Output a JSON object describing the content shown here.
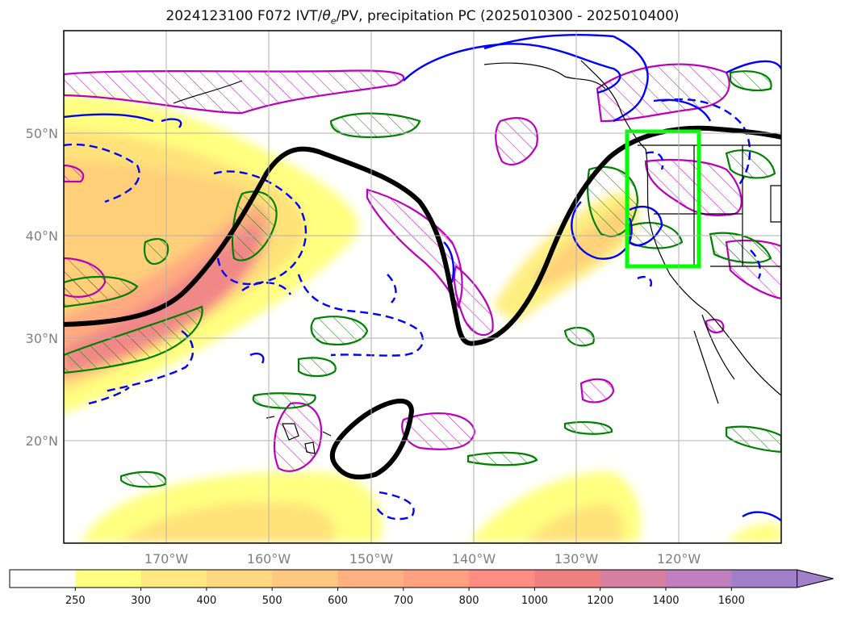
{
  "title": {
    "prefix": "2024123100 F072 IVT/",
    "theta": "θ",
    "theta_sub": "e",
    "suffix": "/PV, precipitation PC (2025010300 - 2025010400)"
  },
  "map": {
    "lon_range": [
      -180,
      -110
    ],
    "lat_range": [
      10,
      60
    ],
    "lon_ticks": [
      "170°W",
      "160°W",
      "150°W",
      "140°W",
      "130°W",
      "120°W"
    ],
    "lat_ticks": [
      "50°N",
      "40°N",
      "30°N",
      "20°N"
    ],
    "grid": true,
    "box": {
      "lon": [
        -125,
        -118
      ],
      "lat": [
        37,
        50
      ],
      "color": "#00ff00"
    }
  },
  "colorbar": {
    "levels": [
      "250",
      "300",
      "400",
      "500",
      "600",
      "700",
      "800",
      "1000",
      "1200",
      "1400",
      "1600"
    ],
    "colors": [
      "#ffffff",
      "#ffff80",
      "#ffe880",
      "#ffd880",
      "#ffc880",
      "#ffb080",
      "#ffa080",
      "#ff8c80",
      "#f08080",
      "#d880a0",
      "#c080c0",
      "#a080c8"
    ],
    "extend": "max"
  },
  "legend_colors": {
    "pv_contour": "#000000",
    "theta_e_plus": "#0000ff",
    "precip_pc": "#008000",
    "hatch": "#bb00bb"
  }
}
